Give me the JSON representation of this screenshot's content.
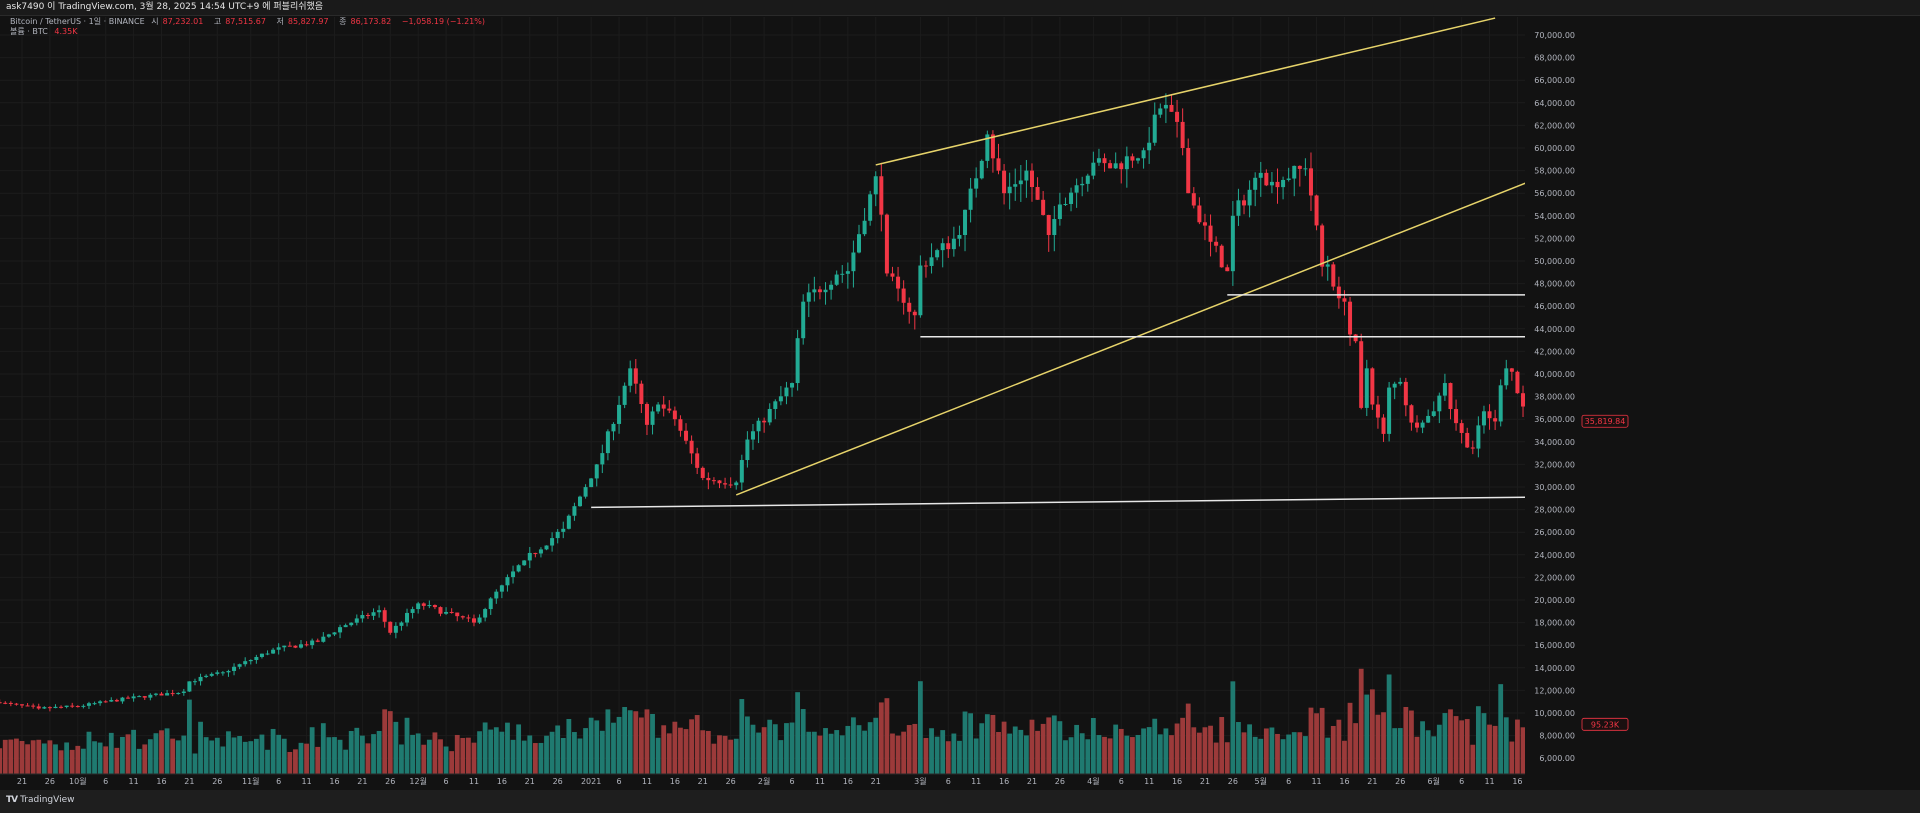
{
  "header": {
    "published_line": "ask7490 이 TradingView.com, 3월 28, 2025 14:54 UTC+9 에 퍼블리쉬했음"
  },
  "legend": {
    "symbol": "Bitcoin / TetherUS · 1일 · BINANCE",
    "open_label": "시",
    "open": "87,232.01",
    "high_label": "고",
    "high": "87,515.67",
    "low_label": "저",
    "low": "85,827.97",
    "close_label": "종",
    "close": "86,173.82",
    "change": "−1,058.19 (−1.21%)",
    "volume_label": "볼륨 · BTC",
    "volume_value": "4.35K"
  },
  "footer": {
    "brand": "TradingView",
    "logo_glyph": "TV"
  },
  "colors": {
    "up": "#22ab94",
    "down": "#f23645",
    "vol_up": "#1f7a70",
    "vol_down": "#9c3a3a",
    "trend_yellow": "#e6d36a",
    "level_white": "#e8e8e8"
  },
  "chart_data": {
    "type": "candlestick",
    "title": "Bitcoin / TetherUS · 1일 · BINANCE",
    "ylim": [
      5000,
      72000
    ],
    "y_ticks": [
      70000,
      68000,
      66000,
      64000,
      62000,
      60000,
      58000,
      56000,
      54000,
      52000,
      50000,
      48000,
      46000,
      44000,
      42000,
      40000,
      38000,
      36000,
      34000,
      32000,
      30000,
      28000,
      26000,
      24000,
      22000,
      20000,
      18000,
      16000,
      14000,
      12000,
      10000,
      8000,
      6000
    ],
    "x_range": [
      "2020-09-17",
      "2021-06-18"
    ],
    "x_ticks": [
      {
        "date": "2020-09-21",
        "label": "21"
      },
      {
        "date": "2020-09-26",
        "label": "26"
      },
      {
        "date": "2020-10-01",
        "label": "10월"
      },
      {
        "date": "2020-10-06",
        "label": "6"
      },
      {
        "date": "2020-10-11",
        "label": "11"
      },
      {
        "date": "2020-10-16",
        "label": "16"
      },
      {
        "date": "2020-10-21",
        "label": "21"
      },
      {
        "date": "2020-10-26",
        "label": "26"
      },
      {
        "date": "2020-11-01",
        "label": "11월"
      },
      {
        "date": "2020-11-06",
        "label": "6"
      },
      {
        "date": "2020-11-11",
        "label": "11"
      },
      {
        "date": "2020-11-16",
        "label": "16"
      },
      {
        "date": "2020-11-21",
        "label": "21"
      },
      {
        "date": "2020-11-26",
        "label": "26"
      },
      {
        "date": "2020-12-01",
        "label": "12월"
      },
      {
        "date": "2020-12-06",
        "label": "6"
      },
      {
        "date": "2020-12-11",
        "label": "11"
      },
      {
        "date": "2020-12-16",
        "label": "16"
      },
      {
        "date": "2020-12-21",
        "label": "21"
      },
      {
        "date": "2020-12-26",
        "label": "26"
      },
      {
        "date": "2021-01-01",
        "label": "2021"
      },
      {
        "date": "2021-01-06",
        "label": "6"
      },
      {
        "date": "2021-01-11",
        "label": "11"
      },
      {
        "date": "2021-01-16",
        "label": "16"
      },
      {
        "date": "2021-01-21",
        "label": "21"
      },
      {
        "date": "2021-01-26",
        "label": "26"
      },
      {
        "date": "2021-02-01",
        "label": "2월"
      },
      {
        "date": "2021-02-06",
        "label": "6"
      },
      {
        "date": "2021-02-11",
        "label": "11"
      },
      {
        "date": "2021-02-16",
        "label": "16"
      },
      {
        "date": "2021-02-21",
        "label": "21"
      },
      {
        "date": "2021-03-01",
        "label": "3월"
      },
      {
        "date": "2021-03-06",
        "label": "6"
      },
      {
        "date": "2021-03-11",
        "label": "11"
      },
      {
        "date": "2021-03-16",
        "label": "16"
      },
      {
        "date": "2021-03-21",
        "label": "21"
      },
      {
        "date": "2021-03-26",
        "label": "26"
      },
      {
        "date": "2021-04-01",
        "label": "4월"
      },
      {
        "date": "2021-04-06",
        "label": "6"
      },
      {
        "date": "2021-04-11",
        "label": "11"
      },
      {
        "date": "2021-04-16",
        "label": "16"
      },
      {
        "date": "2021-04-21",
        "label": "21"
      },
      {
        "date": "2021-04-26",
        "label": "26"
      },
      {
        "date": "2021-05-01",
        "label": "5월"
      },
      {
        "date": "2021-05-06",
        "label": "6"
      },
      {
        "date": "2021-05-11",
        "label": "11"
      },
      {
        "date": "2021-05-16",
        "label": "16"
      },
      {
        "date": "2021-05-21",
        "label": "21"
      },
      {
        "date": "2021-05-26",
        "label": "26"
      },
      {
        "date": "2021-06-01",
        "label": "6월"
      },
      {
        "date": "2021-06-06",
        "label": "6"
      },
      {
        "date": "2021-06-11",
        "label": "11"
      },
      {
        "date": "2021-06-16",
        "label": "16"
      }
    ],
    "close_keypoints": [
      [
        "2020-09-17",
        10900
      ],
      [
        "2020-09-24",
        10400
      ],
      [
        "2020-10-01",
        10600
      ],
      [
        "2020-10-10",
        11300
      ],
      [
        "2020-10-20",
        11900
      ],
      [
        "2020-10-21",
        12800
      ],
      [
        "2020-10-27",
        13600
      ],
      [
        "2020-11-05",
        15600
      ],
      [
        "2020-11-13",
        16300
      ],
      [
        "2020-11-17",
        17600
      ],
      [
        "2020-11-24",
        19100
      ],
      [
        "2020-11-26",
        17100
      ],
      [
        "2020-12-01",
        19700
      ],
      [
        "2020-12-11",
        18000
      ],
      [
        "2020-12-16",
        21300
      ],
      [
        "2020-12-20",
        23500
      ],
      [
        "2020-12-27",
        26300
      ],
      [
        "2021-01-02",
        32000
      ],
      [
        "2021-01-03",
        33000
      ],
      [
        "2021-01-08",
        40500
      ],
      [
        "2021-01-11",
        35500
      ],
      [
        "2021-01-13",
        37300
      ],
      [
        "2021-01-16",
        36000
      ],
      [
        "2021-01-21",
        30800
      ],
      [
        "2021-01-27",
        30400
      ],
      [
        "2021-01-29",
        34200
      ],
      [
        "2021-02-06",
        39200
      ],
      [
        "2021-02-08",
        46400
      ],
      [
        "2021-02-14",
        48800
      ],
      [
        "2021-02-16",
        49100
      ],
      [
        "2021-02-20",
        55900
      ],
      [
        "2021-02-21",
        57500
      ],
      [
        "2021-02-22",
        54100
      ],
      [
        "2021-02-23",
        48900
      ],
      [
        "2021-02-26",
        46300
      ],
      [
        "2021-02-28",
        45200
      ],
      [
        "2021-03-01",
        49600
      ],
      [
        "2021-03-08",
        52300
      ],
      [
        "2021-03-13",
        61200
      ],
      [
        "2021-03-16",
        56000
      ],
      [
        "2021-03-20",
        58000
      ],
      [
        "2021-03-24",
        52300
      ],
      [
        "2021-03-26",
        55000
      ],
      [
        "2021-04-01",
        58700
      ],
      [
        "2021-04-04",
        58200
      ],
      [
        "2021-04-10",
        59800
      ],
      [
        "2021-04-13",
        63500
      ],
      [
        "2021-04-15",
        63200
      ],
      [
        "2021-04-17",
        60000
      ],
      [
        "2021-04-18",
        56000
      ],
      [
        "2021-04-22",
        51700
      ],
      [
        "2021-04-25",
        49100
      ],
      [
        "2021-04-26",
        54000
      ],
      [
        "2021-05-01",
        57800
      ],
      [
        "2021-05-03",
        57000
      ],
      [
        "2021-05-09",
        58200
      ],
      [
        "2021-05-10",
        55800
      ],
      [
        "2021-05-12",
        49500
      ],
      [
        "2021-05-13",
        49700
      ],
      [
        "2021-05-15",
        46700
      ],
      [
        "2021-05-16",
        46400
      ],
      [
        "2021-05-17",
        43500
      ],
      [
        "2021-05-18",
        42900
      ],
      [
        "2021-05-19",
        37000
      ],
      [
        "2021-05-20",
        40500
      ],
      [
        "2021-05-21",
        37300
      ],
      [
        "2021-05-23",
        34700
      ],
      [
        "2021-05-24",
        38800
      ],
      [
        "2021-05-26",
        39300
      ],
      [
        "2021-05-28",
        35700
      ],
      [
        "2021-05-30",
        35700
      ],
      [
        "2021-06-01",
        36700
      ],
      [
        "2021-06-03",
        39200
      ],
      [
        "2021-06-04",
        36900
      ],
      [
        "2021-06-07",
        33500
      ],
      [
        "2021-06-08",
        33400
      ],
      [
        "2021-06-10",
        36700
      ],
      [
        "2021-06-12",
        35800
      ],
      [
        "2021-06-13",
        39000
      ],
      [
        "2021-06-14",
        40500
      ],
      [
        "2021-06-15",
        40200
      ],
      [
        "2021-06-16",
        38300
      ],
      [
        "2021-06-18",
        35819.84
      ]
    ],
    "last_price_label": "35,819.84",
    "last_volume_label": "95.23K",
    "drawings": [
      {
        "kind": "trendline",
        "color": "yellow",
        "from": [
          "2021-02-21",
          58500
        ],
        "to": [
          "2021-06-12",
          71500
        ]
      },
      {
        "kind": "trendline",
        "color": "yellow",
        "from": [
          "2021-01-27",
          29300
        ],
        "to": [
          "2021-06-18",
          57000
        ]
      },
      {
        "kind": "level",
        "color": "white",
        "from": [
          "2021-01-01",
          28200
        ],
        "to": [
          "2021-06-18",
          29100
        ]
      },
      {
        "kind": "level",
        "color": "white",
        "from": [
          "2021-03-01",
          43300
        ],
        "to": [
          "2021-06-18",
          43300
        ]
      },
      {
        "kind": "level",
        "color": "white",
        "from": [
          "2021-04-25",
          47000
        ],
        "to": [
          "2021-06-18",
          47000
        ]
      }
    ]
  }
}
